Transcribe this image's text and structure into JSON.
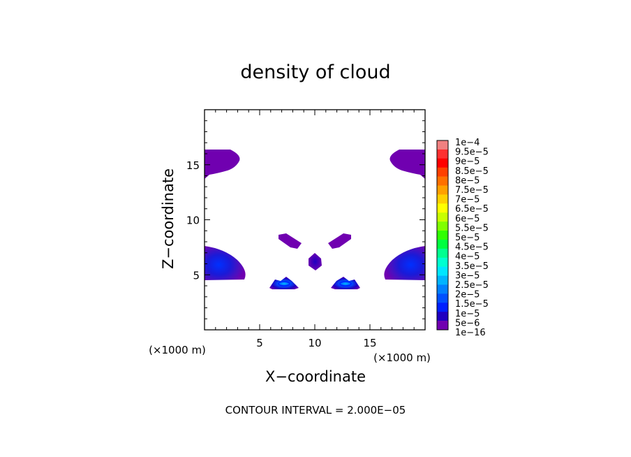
{
  "chart_data": {
    "type": "heatmap",
    "title": "density of cloud",
    "xlabel": "X−coordinate",
    "ylabel": "Z−coordinate",
    "x_unit": "(×1000 m)",
    "z_unit": "(×1000 m)",
    "xlim": [
      0,
      20
    ],
    "ylim": [
      0,
      20
    ],
    "x_ticks": [
      5,
      10,
      15
    ],
    "y_ticks": [
      5,
      10,
      15
    ],
    "contour_interval_text": "CONTOUR INTERVAL = 2.000E−05",
    "colorbar": {
      "labels": [
        "1e−4",
        "9.5e−5",
        "9e−5",
        "8.5e−5",
        "8e−5",
        "7.5e−5",
        "7e−5",
        "6.5e−5",
        "6e−5",
        "5.5e−5",
        "5e−5",
        "4.5e−5",
        "4e−5",
        "3.5e−5",
        "3e−5",
        "2.5e−5",
        "2e−5",
        "1.5e−5",
        "1e−5",
        "5e−6",
        "1e−16"
      ],
      "colors": [
        "#f08080",
        "#ff3030",
        "#ff0000",
        "#ff4000",
        "#ff7000",
        "#ffa000",
        "#ffd000",
        "#ffff00",
        "#c8ff00",
        "#80ff00",
        "#30ff00",
        "#00ff40",
        "#00ff90",
        "#00ffd0",
        "#00e6ff",
        "#00b4ff",
        "#0080ff",
        "#0050ff",
        "#0020ff",
        "#2000c0",
        "#7000b0"
      ]
    },
    "regions": [
      {
        "name": "upper-left-band",
        "center": [
          1.2,
          15.2
        ],
        "value": "1e-16"
      },
      {
        "name": "upper-right-band",
        "center": [
          18.8,
          15.2
        ],
        "value": "1e-16"
      },
      {
        "name": "lower-left-lobe",
        "center": [
          1.5,
          5.8
        ],
        "value": "1e-5"
      },
      {
        "name": "lower-right-lobe",
        "center": [
          18.5,
          5.8
        ],
        "value": "1e-5"
      },
      {
        "name": "left-diagonal",
        "center": [
          7.5,
          8.0
        ],
        "value": "1e-16"
      },
      {
        "name": "right-diagonal",
        "center": [
          12.5,
          8.0
        ],
        "value": "1e-16"
      },
      {
        "name": "center-core",
        "center": [
          10.0,
          6.2
        ],
        "value": "5e-6"
      },
      {
        "name": "left-small-cell",
        "center": [
          7.3,
          4.3
        ],
        "value": "2e-5"
      },
      {
        "name": "right-small-cell",
        "center": [
          12.7,
          4.3
        ],
        "value": "2e-5"
      }
    ]
  }
}
